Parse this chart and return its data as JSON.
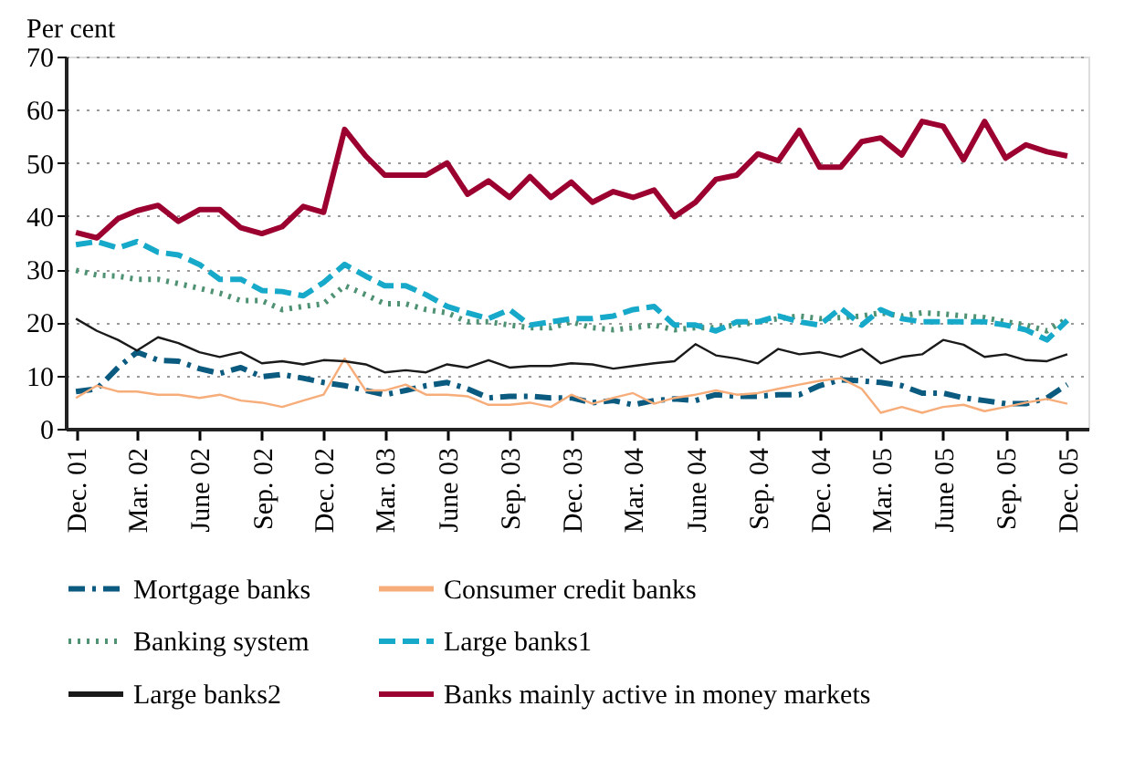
{
  "chart_data": {
    "type": "line",
    "ylabel": "Per cent",
    "x": [
      "2001-12",
      "2002-01",
      "2002-02",
      "2002-03",
      "2002-04",
      "2002-05",
      "2002-06",
      "2002-07",
      "2002-08",
      "2002-09",
      "2002-10",
      "2002-11",
      "2002-12",
      "2003-01",
      "2003-02",
      "2003-03",
      "2003-04",
      "2003-05",
      "2003-06",
      "2003-07",
      "2003-08",
      "2003-09",
      "2003-10",
      "2003-11",
      "2003-12",
      "2004-01",
      "2004-02",
      "2004-03",
      "2004-04",
      "2004-05",
      "2004-06",
      "2004-07",
      "2004-08",
      "2004-09",
      "2004-10",
      "2004-11",
      "2004-12",
      "2005-01",
      "2005-02",
      "2005-03",
      "2005-04",
      "2005-05",
      "2005-06",
      "2005-07",
      "2005-08",
      "2005-09",
      "2005-10",
      "2005-11",
      "2005-12"
    ],
    "series": [
      {
        "name": "Mortgage banks",
        "color": "#0b5a7f",
        "line_style": "dashdot",
        "values": [
          7,
          7.5,
          11.5,
          14.4,
          12.9,
          12.7,
          11.3,
          10.4,
          11.5,
          9.8,
          10.2,
          9.5,
          8.7,
          8.1,
          7.2,
          6.4,
          7.2,
          8.1,
          8.7,
          7.5,
          5.8,
          6.1,
          6.1,
          5.8,
          5.8,
          4.9,
          5.3,
          4.5,
          5.3,
          5.6,
          5.3,
          6.4,
          6.1,
          6.1,
          6.4,
          6.4,
          8.1,
          9.2,
          9,
          8.7,
          8.1,
          6.7,
          6.7,
          5.8,
          5.3,
          4.7,
          4.7,
          5.8,
          8.3
        ]
      },
      {
        "name": "Consumer credit banks",
        "color": "#f7ad7a",
        "line_style": "solid",
        "values": [
          5.8,
          8.1,
          7,
          7,
          6.4,
          6.4,
          5.8,
          6.4,
          5.3,
          4.9,
          4.1,
          5.3,
          6.4,
          13.2,
          7.2,
          7.2,
          8.3,
          6.4,
          6.4,
          6.1,
          4.5,
          4.5,
          4.9,
          4.1,
          6.4,
          4.7,
          5.8,
          6.7,
          4.7,
          5.8,
          6.4,
          7.2,
          6.4,
          6.7,
          7.5,
          8.3,
          9,
          9.5,
          7.5,
          3,
          4.1,
          3,
          4.1,
          4.5,
          3.3,
          4.1,
          4.9,
          5.6,
          4.7
        ]
      },
      {
        "name": "Banking system",
        "color": "#4f9273",
        "line_style": "dotted",
        "values": [
          29.8,
          28.9,
          28.7,
          28.1,
          28.1,
          27.3,
          26.4,
          25.5,
          24.1,
          24.1,
          22.4,
          23,
          23.5,
          26.9,
          25.2,
          23.5,
          23.5,
          22.4,
          21.8,
          20.1,
          20.1,
          19.5,
          19,
          19,
          20.1,
          19,
          18.6,
          19,
          19.5,
          18.6,
          19,
          19,
          19.5,
          20.1,
          20.7,
          21.2,
          20.7,
          20.9,
          21.2,
          21.8,
          21.2,
          21.8,
          21.6,
          21.2,
          20.9,
          20.1,
          19.5,
          18.4,
          20.7
        ]
      },
      {
        "name": "Large banks1",
        "color": "#17a9c9",
        "line_style": "dashed",
        "values": [
          34.6,
          35.2,
          34,
          35.2,
          33.2,
          32.7,
          30.9,
          28.1,
          28.1,
          26,
          25.8,
          25,
          27.5,
          30.9,
          28.7,
          26.9,
          26.9,
          25.2,
          23,
          21.8,
          20.7,
          22.4,
          19.5,
          20.1,
          20.7,
          20.7,
          21.2,
          22.4,
          23,
          19.5,
          19.5,
          18.4,
          20.1,
          20.1,
          21.2,
          20.1,
          19.5,
          22.7,
          19.5,
          22.4,
          20.7,
          20.1,
          20.1,
          20.1,
          20.1,
          19.5,
          18.6,
          16.7,
          20.4
        ]
      },
      {
        "name": "Large banks2",
        "color": "#1a1a1a",
        "line_style": "solid",
        "values": [
          20.7,
          18.4,
          16.7,
          14.7,
          17.2,
          16.1,
          14.4,
          13.5,
          14.4,
          12.3,
          12.7,
          12.1,
          12.9,
          12.7,
          12.1,
          10.6,
          11,
          10.6,
          12.1,
          11.5,
          12.9,
          11.5,
          11.8,
          11.8,
          12.3,
          12.1,
          11.3,
          11.8,
          12.3,
          12.7,
          15.9,
          13.8,
          13.2,
          12.3,
          15,
          14,
          14.4,
          13.5,
          15,
          12.3,
          13.5,
          14,
          16.7,
          15.8,
          13.5,
          14,
          12.9,
          12.7,
          14
        ]
      },
      {
        "name": "Banks mainly active in money markets",
        "color": "#9c0030",
        "line_style": "solid",
        "values": [
          36.9,
          35.9,
          39.5,
          41,
          42,
          39,
          41.2,
          41.2,
          37.8,
          36.7,
          38,
          41.8,
          40.7,
          56.3,
          51.3,
          47.7,
          47.7,
          47.7,
          50,
          44.1,
          46.6,
          43.5,
          47.4,
          43.5,
          46.4,
          42.6,
          44.6,
          43.5,
          44.9,
          39.9,
          42.6,
          46.9,
          47.7,
          51.7,
          50.4,
          56.1,
          49.2,
          49.2,
          54,
          54.7,
          51.5,
          57.8,
          56.9,
          50.6,
          57.8,
          50.9,
          53.4,
          52.1,
          51.3
        ]
      }
    ],
    "xlim": [
      "2001-11-16",
      "2006-01-01"
    ],
    "xticks": [
      {
        "value": "2001-12",
        "label": "Dec. 01"
      },
      {
        "value": "2002-03",
        "label": "Mar. 02"
      },
      {
        "value": "2002-06",
        "label": "June 02"
      },
      {
        "value": "2002-09",
        "label": "Sep. 02"
      },
      {
        "value": "2002-12",
        "label": "Dec. 02"
      },
      {
        "value": "2003-03",
        "label": "Mar. 03"
      },
      {
        "value": "2003-06",
        "label": "June 03"
      },
      {
        "value": "2003-09",
        "label": "Sep. 03"
      },
      {
        "value": "2003-12",
        "label": "Dec. 03"
      },
      {
        "value": "2004-03",
        "label": "Mar. 04"
      },
      {
        "value": "2004-06",
        "label": "June 04"
      },
      {
        "value": "2004-09",
        "label": "Sep. 04"
      },
      {
        "value": "2004-12",
        "label": "Dec. 04"
      },
      {
        "value": "2005-03",
        "label": "Mar. 05"
      },
      {
        "value": "2005-06",
        "label": "June 05"
      },
      {
        "value": "2005-09",
        "label": "Sep. 05"
      },
      {
        "value": "2005-12",
        "label": "Dec. 05"
      }
    ],
    "ylim": [
      0,
      70
    ],
    "yticks": [
      0,
      10,
      20,
      30,
      40,
      50,
      60,
      70
    ],
    "grid": "y",
    "legend": "bottom",
    "marker": "none"
  }
}
